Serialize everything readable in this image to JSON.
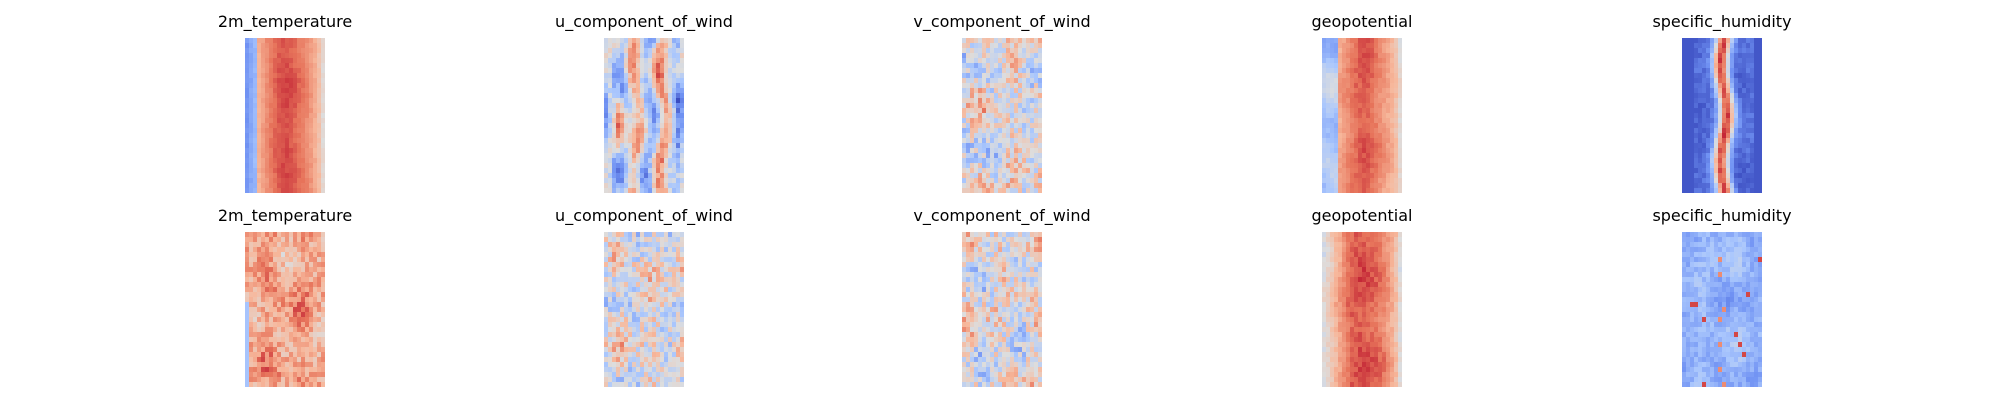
{
  "chart_data": {
    "type": "heatmap",
    "colormap": "coolwarm",
    "colormap_colors": [
      "#3b4cc0",
      "#7092f3",
      "#aac7fd",
      "#dddddd",
      "#f7b89c",
      "#e7745b",
      "#b40426"
    ],
    "grid": false,
    "panels": [
      {
        "row": 0,
        "title": "2m_temperature",
        "pattern": "bands",
        "left_cool": true,
        "right_cool": false,
        "center_intensity": 0.78,
        "noise": 0.12
      },
      {
        "row": 0,
        "title": "u_component_of_wind",
        "pattern": "streaks",
        "center_intensity": 0.15,
        "noise": 0.55
      },
      {
        "row": 0,
        "title": "v_component_of_wind",
        "pattern": "speckle",
        "center_intensity": 0.0,
        "noise": 0.5
      },
      {
        "row": 0,
        "title": "geopotential",
        "pattern": "bands",
        "left_cool": true,
        "right_cool": false,
        "center_intensity": 0.72,
        "noise": 0.18
      },
      {
        "row": 0,
        "title": "specific_humidity",
        "pattern": "ridge",
        "center_intensity": 0.9,
        "noise": 0.25
      },
      {
        "row": 1,
        "title": "2m_temperature",
        "pattern": "mottled",
        "center_intensity": 0.45,
        "noise": 0.28
      },
      {
        "row": 1,
        "title": "u_component_of_wind",
        "pattern": "speckle",
        "center_intensity": 0.1,
        "noise": 0.42
      },
      {
        "row": 1,
        "title": "v_component_of_wind",
        "pattern": "speckle",
        "center_intensity": 0.0,
        "noise": 0.5
      },
      {
        "row": 1,
        "title": "geopotential",
        "pattern": "bands",
        "left_cool": false,
        "right_cool": false,
        "center_intensity": 0.78,
        "noise": 0.22
      },
      {
        "row": 1,
        "title": "specific_humidity",
        "pattern": "cool-field",
        "center_intensity": -0.45,
        "noise": 0.2
      }
    ]
  }
}
